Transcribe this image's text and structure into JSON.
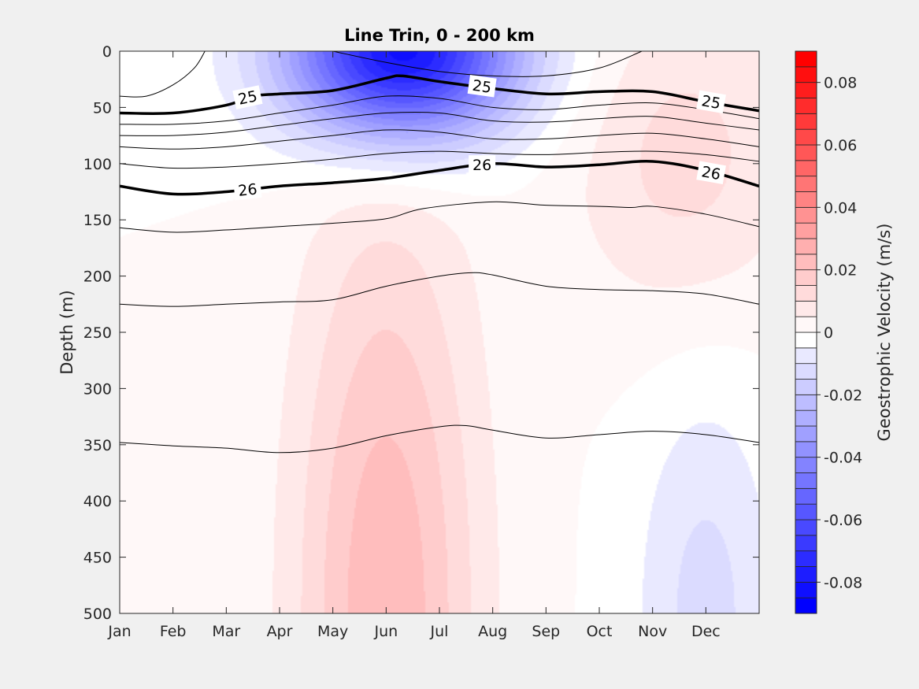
{
  "chart_data": {
    "type": "heatmap",
    "title": "Line Trin, 0 - 200 km",
    "xlabel": "",
    "ylabel": "Depth (m)",
    "x_tick_labels": [
      "Jan",
      "Feb",
      "Mar",
      "Apr",
      "May",
      "Jun",
      "Jul",
      "Aug",
      "Sep",
      "Oct",
      "Nov",
      "Dec"
    ],
    "x_tick_values": [
      1,
      2,
      3,
      4,
      5,
      6,
      7,
      8,
      9,
      10,
      11,
      12
    ],
    "xlim": [
      1,
      13
    ],
    "y_ticks": [
      0,
      50,
      100,
      150,
      200,
      250,
      300,
      350,
      400,
      450,
      500
    ],
    "ylim": [
      0,
      500
    ],
    "y_reversed": true,
    "grid": false,
    "colorbar": {
      "label": "Geostrophic Velocity (m/s)",
      "range": [
        -0.09,
        0.09
      ],
      "step": 0.005,
      "ticks": [
        0.08,
        0.06,
        0.04,
        0.02,
        0,
        -0.02,
        -0.04,
        -0.06,
        -0.08
      ],
      "tick_labels": [
        "0.08",
        "0.06",
        "0.04",
        "0.02",
        "0",
        "-0.02",
        "-0.04",
        "-0.06",
        "-0.08"
      ],
      "neg_color": "#0000ff",
      "pos_color": "#ff0000",
      "zero_color": "#ffffff"
    },
    "velocity_features": [
      {
        "sign": "negative",
        "center": [
          6.3,
          0
        ],
        "sigma_month": 1.5,
        "sigma_depth": 55,
        "peak": -0.085
      },
      {
        "sign": "positive",
        "center": [
          11.6,
          95
        ],
        "sigma_month": 1.5,
        "sigma_depth": 100,
        "peak": 0.012
      },
      {
        "sign": "positive",
        "center": [
          6.0,
          500
        ],
        "sigma_month": 1.2,
        "sigma_depth": 260,
        "peak": 0.024
      },
      {
        "sign": "negative",
        "center": [
          12.0,
          500
        ],
        "sigma_month": 0.9,
        "sigma_depth": 140,
        "peak": -0.012
      }
    ],
    "density_contours": [
      {
        "label": "",
        "bold": false,
        "points": [
          [
            1,
            40
          ],
          [
            1.5,
            40
          ],
          [
            2,
            30
          ],
          [
            2.4,
            15
          ],
          [
            2.6,
            0
          ]
        ]
      },
      {
        "label": "",
        "bold": false,
        "points": [
          [
            5,
            0
          ],
          [
            6,
            10
          ],
          [
            7,
            18
          ],
          [
            8,
            22
          ],
          [
            9,
            22
          ],
          [
            10,
            15
          ],
          [
            10.8,
            0
          ]
        ]
      },
      {
        "label": "25",
        "bold": true,
        "points": [
          [
            1,
            55
          ],
          [
            2,
            55
          ],
          [
            3,
            48
          ],
          [
            3.5,
            40
          ],
          [
            4,
            38
          ],
          [
            5,
            35
          ],
          [
            6,
            24
          ],
          [
            6.3,
            22
          ],
          [
            7,
            27
          ],
          [
            7.8,
            32
          ],
          [
            9,
            38
          ],
          [
            10,
            36
          ],
          [
            11,
            36
          ],
          [
            12,
            45
          ],
          [
            13,
            53
          ]
        ]
      },
      {
        "label": "",
        "bold": false,
        "points": [
          [
            1,
            65
          ],
          [
            2,
            65
          ],
          [
            3,
            62
          ],
          [
            4,
            55
          ],
          [
            5,
            48
          ],
          [
            6,
            40
          ],
          [
            7,
            42
          ],
          [
            8,
            50
          ],
          [
            9,
            52
          ],
          [
            10,
            48
          ],
          [
            11,
            46
          ],
          [
            12,
            52
          ],
          [
            13,
            60
          ]
        ]
      },
      {
        "label": "",
        "bold": false,
        "points": [
          [
            1,
            75
          ],
          [
            2,
            75
          ],
          [
            3,
            72
          ],
          [
            4,
            66
          ],
          [
            5,
            60
          ],
          [
            6,
            55
          ],
          [
            7,
            55
          ],
          [
            8,
            62
          ],
          [
            9,
            63
          ],
          [
            10,
            60
          ],
          [
            11,
            58
          ],
          [
            12,
            64
          ],
          [
            13,
            70
          ]
        ]
      },
      {
        "label": "",
        "bold": false,
        "points": [
          [
            1,
            85
          ],
          [
            2,
            87
          ],
          [
            3,
            85
          ],
          [
            4,
            80
          ],
          [
            5,
            75
          ],
          [
            6,
            70
          ],
          [
            7,
            72
          ],
          [
            8,
            78
          ],
          [
            9,
            78
          ],
          [
            10,
            75
          ],
          [
            11,
            73
          ],
          [
            12,
            78
          ],
          [
            13,
            85
          ]
        ]
      },
      {
        "label": "",
        "bold": false,
        "points": [
          [
            1,
            100
          ],
          [
            2,
            104
          ],
          [
            3,
            103
          ],
          [
            4,
            100
          ],
          [
            5,
            96
          ],
          [
            6,
            91
          ],
          [
            7,
            89
          ],
          [
            8,
            91
          ],
          [
            9,
            92
          ],
          [
            10,
            90
          ],
          [
            11,
            89
          ],
          [
            12,
            92
          ],
          [
            13,
            98
          ]
        ]
      },
      {
        "label": "26",
        "bold": true,
        "points": [
          [
            1,
            120
          ],
          [
            2,
            127
          ],
          [
            3,
            125
          ],
          [
            4,
            120
          ],
          [
            5,
            117
          ],
          [
            6,
            113
          ],
          [
            7,
            106
          ],
          [
            8,
            100
          ],
          [
            9,
            103
          ],
          [
            10,
            101
          ],
          [
            11,
            98
          ],
          [
            12,
            106
          ],
          [
            13,
            120
          ]
        ]
      },
      {
        "label": "",
        "bold": false,
        "points": [
          [
            1,
            157
          ],
          [
            2,
            161
          ],
          [
            3,
            159
          ],
          [
            4,
            156
          ],
          [
            5,
            153
          ],
          [
            6,
            149
          ],
          [
            6.7,
            140
          ],
          [
            8,
            134
          ],
          [
            9,
            137
          ],
          [
            10,
            138
          ],
          [
            10.6,
            139
          ],
          [
            11,
            138
          ],
          [
            12,
            145
          ],
          [
            13,
            156
          ]
        ]
      },
      {
        "label": "",
        "bold": false,
        "points": [
          [
            1,
            225
          ],
          [
            2,
            227
          ],
          [
            3,
            225
          ],
          [
            4,
            223
          ],
          [
            5,
            221
          ],
          [
            6,
            209
          ],
          [
            7,
            200
          ],
          [
            7.6,
            197
          ],
          [
            8,
            199
          ],
          [
            9,
            209
          ],
          [
            10,
            212
          ],
          [
            11,
            213
          ],
          [
            12,
            216
          ],
          [
            13,
            225
          ]
        ]
      },
      {
        "label": "",
        "bold": false,
        "points": [
          [
            1,
            348
          ],
          [
            2,
            351
          ],
          [
            3,
            353
          ],
          [
            4,
            357
          ],
          [
            5,
            353
          ],
          [
            6,
            342
          ],
          [
            7,
            334
          ],
          [
            7.5,
            333
          ],
          [
            8,
            337
          ],
          [
            9,
            344
          ],
          [
            10,
            341
          ],
          [
            11,
            338
          ],
          [
            12,
            341
          ],
          [
            13,
            348
          ]
        ]
      }
    ],
    "contour_labels": [
      {
        "text": "25",
        "x": 3.4,
        "y": 41,
        "angle": -12
      },
      {
        "text": "25",
        "x": 7.8,
        "y": 31,
        "angle": 8
      },
      {
        "text": "25",
        "x": 12.1,
        "y": 45,
        "angle": 10
      },
      {
        "text": "26",
        "x": 3.4,
        "y": 123,
        "angle": -6
      },
      {
        "text": "26",
        "x": 7.8,
        "y": 101,
        "angle": 0
      },
      {
        "text": "26",
        "x": 12.1,
        "y": 108,
        "angle": 10
      }
    ]
  }
}
